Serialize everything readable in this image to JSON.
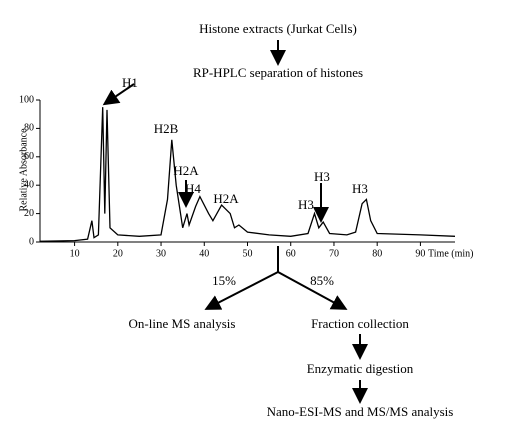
{
  "flow": {
    "source": "Histone extracts (Jurkat Cells)",
    "separation": "RP-HPLC separation of histones",
    "split_left": "15%",
    "split_right": "85%",
    "left_step": "On-line MS analysis",
    "right_steps": [
      "Fraction collection",
      "Enzymatic digestion",
      "Nano-ESI-MS and MS/MS analysis"
    ]
  },
  "chart_data": {
    "type": "line",
    "y_label": "Relative Absorbance",
    "x_label": "Time (min)",
    "x": [
      2,
      10,
      13,
      14,
      14.5,
      15.5,
      16.5,
      17,
      17.5,
      18.2,
      20,
      25,
      30,
      31.5,
      32.5,
      33.5,
      35,
      36,
      36.5,
      38,
      39,
      41,
      42,
      44,
      46,
      47,
      48,
      50,
      55,
      60,
      64,
      65.5,
      66.5,
      67.5,
      69,
      73,
      75,
      76.5,
      77.5,
      78.5,
      80,
      90,
      98
    ],
    "values": [
      0.5,
      1,
      2,
      15,
      3,
      5,
      95,
      20,
      93,
      10,
      5,
      4,
      5,
      30,
      72,
      40,
      10,
      20,
      12,
      25,
      32,
      20,
      15,
      26,
      20,
      10,
      12,
      7,
      5,
      4,
      6,
      20,
      10,
      14,
      6,
      5,
      7,
      27,
      30,
      15,
      6,
      5,
      4
    ],
    "color": "#000000",
    "xlim": [
      2,
      98
    ],
    "xticks": [
      10,
      20,
      30,
      40,
      50,
      60,
      70,
      80,
      90
    ],
    "ylim": [
      0,
      100
    ],
    "yticks": [
      0,
      20,
      40,
      60,
      80,
      100
    ],
    "annotations": [
      "H1",
      "H2B",
      "H2A",
      "H4",
      "H2A",
      "H3",
      "H3",
      "H3"
    ]
  }
}
